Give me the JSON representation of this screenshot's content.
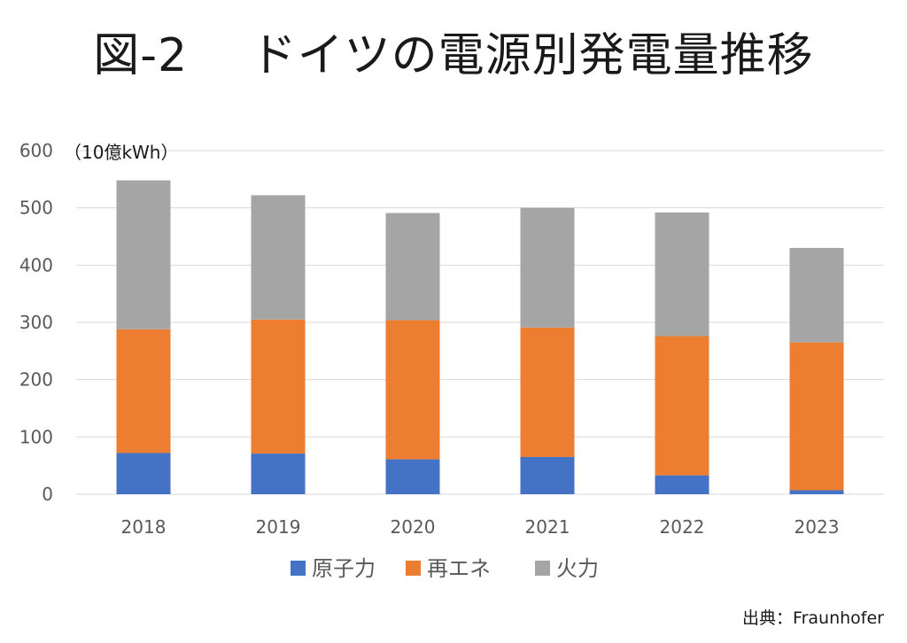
{
  "title": "図-2　 ドイツの電源別発電量推移",
  "unit_label": "（10億kWh）",
  "source": "出典：Fraunhofer",
  "colors": {
    "nuclear": "#4472C4",
    "renewable": "#ED7D31",
    "thermal": "#A5A5A5",
    "grid": "#D9D9D9",
    "axis_text": "#595959"
  },
  "chart_data": {
    "type": "bar",
    "stacked": true,
    "categories": [
      "2018",
      "2019",
      "2020",
      "2021",
      "2022",
      "2023"
    ],
    "series": [
      {
        "name": "原子力",
        "key": "nuclear",
        "values": [
          72,
          71,
          61,
          65,
          33,
          7
        ]
      },
      {
        "name": "再エネ",
        "key": "renewable",
        "values": [
          216,
          234,
          243,
          226,
          243,
          258
        ]
      },
      {
        "name": "火力",
        "key": "thermal",
        "values": [
          260,
          217,
          187,
          209,
          216,
          165
        ]
      }
    ],
    "ylim": [
      0,
      600
    ],
    "yticks": [
      0,
      100,
      200,
      300,
      400,
      500,
      600
    ],
    "grid": true,
    "legend_position": "bottom"
  }
}
